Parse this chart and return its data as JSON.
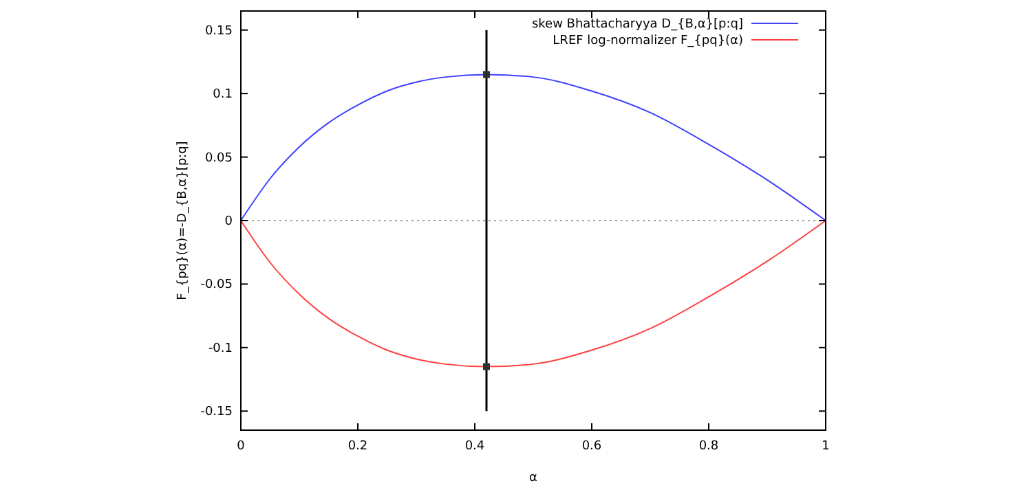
{
  "chart_data": {
    "type": "line",
    "xlabel": "α",
    "ylabel": "F_{pq}(α)=-D_{B,α}[p:q]",
    "xlim": [
      0,
      1
    ],
    "xticks": [
      0,
      0.2,
      0.4,
      0.6,
      0.8,
      1
    ],
    "ylim": [
      -0.165,
      0.165
    ],
    "yticks": [
      -0.15,
      -0.1,
      -0.05,
      0,
      0.05,
      0.1,
      0.15
    ],
    "legend": "top right",
    "grid": false,
    "ref_lines": [
      {
        "axis": "y",
        "value": 0,
        "color": "#a0a0a0",
        "line_style": "dotted"
      }
    ],
    "series": [
      {
        "name": "skew Bhattacharyya D_{B,α}[p:q]",
        "color": "#4040ff",
        "x": [
          0,
          0.05,
          0.1,
          0.15,
          0.2,
          0.25,
          0.3,
          0.35,
          0.42,
          0.5,
          0.6,
          0.7,
          0.8,
          0.9,
          1
        ],
        "values": [
          0,
          0.033,
          0.058,
          0.077,
          0.091,
          0.102,
          0.109,
          0.113,
          0.115,
          0.113,
          0.102,
          0.085,
          0.06,
          0.032,
          0
        ]
      },
      {
        "name": "LREF log-normalizer F_{pq}(α)",
        "color": "#ff4040",
        "x": [
          0,
          0.05,
          0.1,
          0.15,
          0.2,
          0.25,
          0.3,
          0.35,
          0.42,
          0.5,
          0.6,
          0.7,
          0.8,
          0.9,
          1
        ],
        "values": [
          0,
          -0.033,
          -0.058,
          -0.077,
          -0.091,
          -0.102,
          -0.109,
          -0.113,
          -0.115,
          -0.113,
          -0.102,
          -0.085,
          -0.06,
          -0.032,
          0
        ]
      },
      {
        "type": "line",
        "color": "#000000",
        "x": [
          0.42,
          0.42
        ],
        "values": [
          -0.15,
          0.15
        ]
      },
      {
        "type": "scatter",
        "marker": "square",
        "color": "#303030",
        "x": [
          0.42,
          0.42
        ],
        "values": [
          0.115,
          -0.115
        ]
      }
    ]
  }
}
